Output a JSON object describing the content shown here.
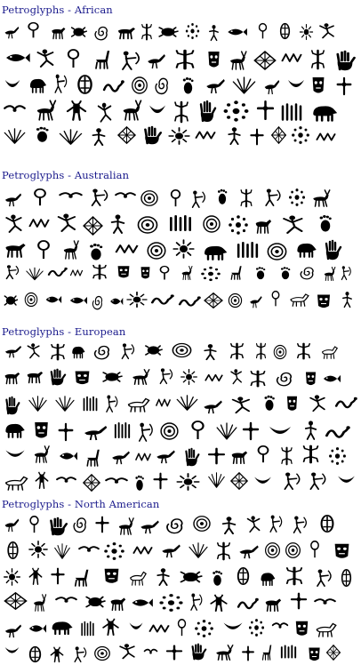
{
  "sections": [
    {
      "title": "Petroglyphs - African",
      "glyph_count": 60
    },
    {
      "title": "Petroglyphs - Australian",
      "glyph_count": 64
    },
    {
      "title": "Petroglyphs - European",
      "glyph_count": 70
    },
    {
      "title": "Petroglyphs - North American",
      "glyph_count": 72
    }
  ],
  "colors": {
    "title": "#1a1a8c",
    "glyph": "#000000",
    "background": "#ffffff"
  }
}
